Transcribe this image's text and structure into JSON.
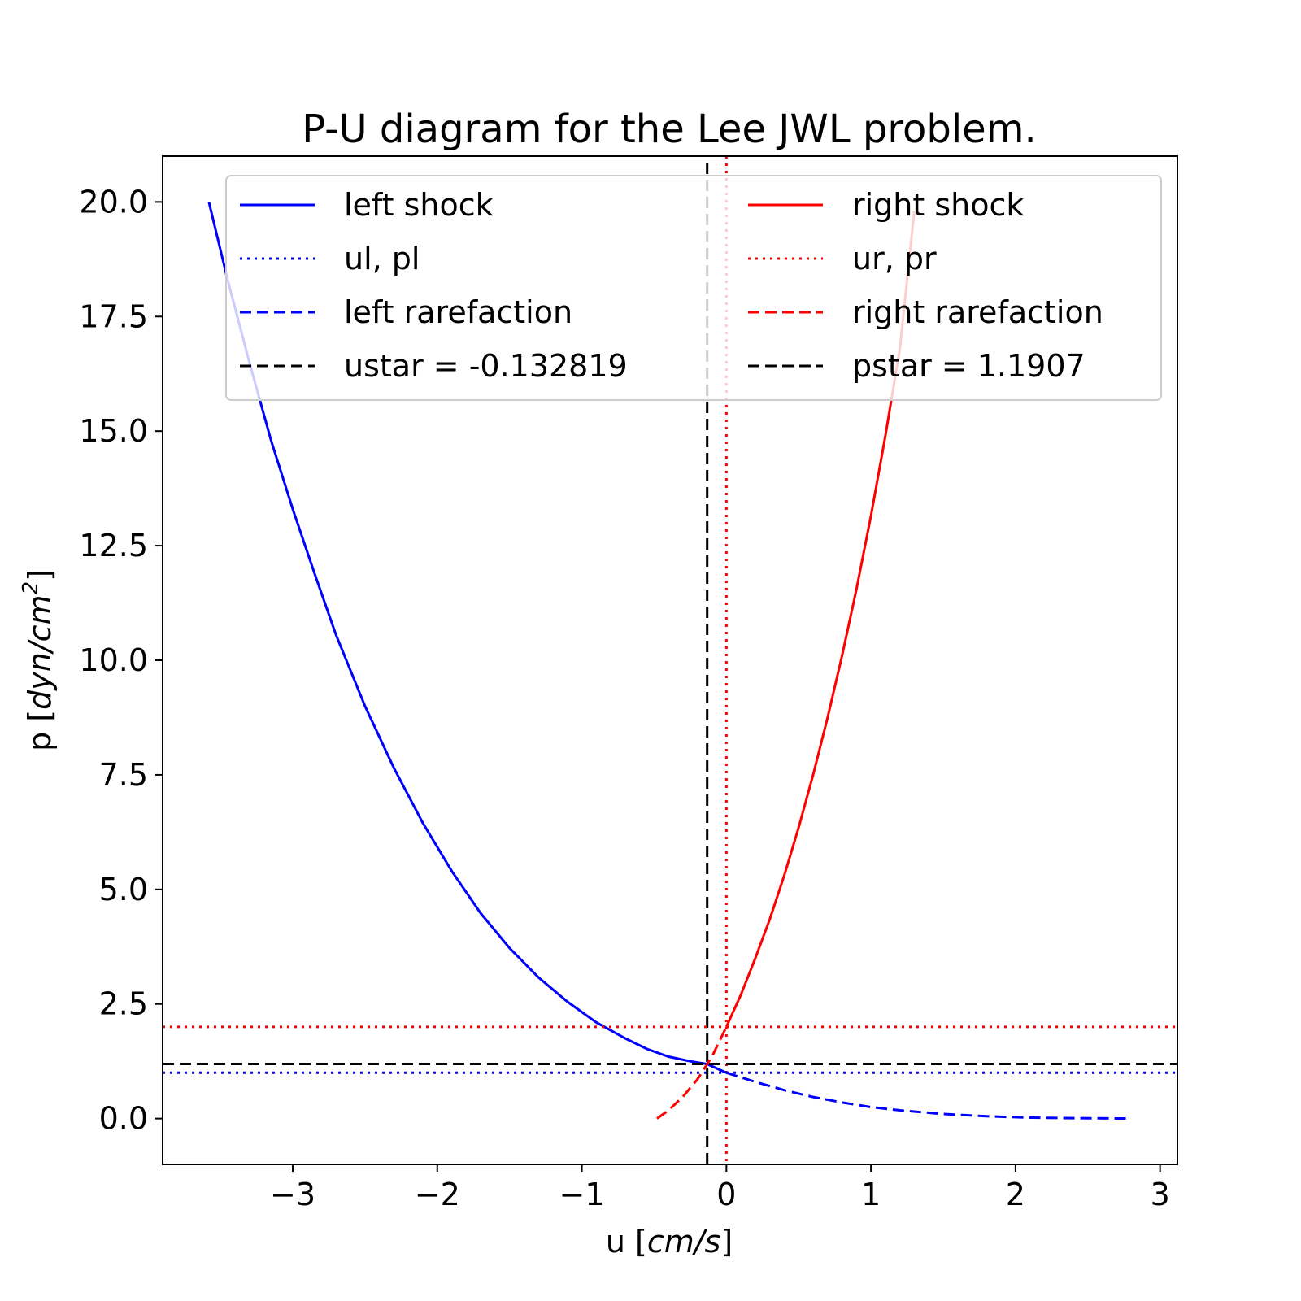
{
  "chart_data": {
    "type": "line",
    "title": "P-U diagram for the Lee JWL problem.",
    "xlabel_prefix": "u [",
    "xlabel_unit": "cm/s",
    "xlabel_suffix": "]",
    "ylabel_prefix": "p [",
    "ylabel_unit": "dyn/cm",
    "ylabel_exp": "2",
    "ylabel_suffix": "]",
    "xlim": [
      -3.9,
      3.12
    ],
    "ylim": [
      -1.0,
      21.0
    ],
    "xticks": [
      -3,
      -2,
      -1,
      0,
      1,
      2,
      3
    ],
    "xtick_labels": [
      "−3",
      "−2",
      "−1",
      "0",
      "1",
      "2",
      "3"
    ],
    "yticks": [
      0,
      2.5,
      5,
      7.5,
      10,
      12.5,
      15,
      17.5,
      20
    ],
    "ytick_labels": [
      "0.0",
      "2.5",
      "5.0",
      "7.5",
      "10.0",
      "12.5",
      "15.0",
      "17.5",
      "20.0"
    ],
    "grid": false,
    "legend_placement": "top",
    "series": [
      {
        "name": "left shock",
        "color": "#0000ff",
        "style": "solid",
        "x": [
          -3.58,
          -3.45,
          -3.3,
          -3.15,
          -3.0,
          -2.85,
          -2.7,
          -2.5,
          -2.3,
          -2.1,
          -1.9,
          -1.7,
          -1.5,
          -1.3,
          -1.1,
          -0.9,
          -0.7,
          -0.55,
          -0.4,
          -0.25,
          -0.133,
          0.0
        ],
        "y": [
          20.0,
          18.3,
          16.5,
          14.8,
          13.3,
          11.9,
          10.55,
          9.0,
          7.65,
          6.45,
          5.4,
          4.48,
          3.72,
          3.08,
          2.55,
          2.1,
          1.75,
          1.52,
          1.35,
          1.25,
          1.19,
          1.0
        ]
      },
      {
        "name": "ul, pl",
        "color": "#0000ff",
        "style": "dotted",
        "x": [
          -3.9,
          3.12
        ],
        "y": [
          1.0,
          1.0
        ]
      },
      {
        "name": "left rarefaction",
        "color": "#0000ff",
        "style": "dashed",
        "x": [
          0.0,
          0.2,
          0.4,
          0.6,
          0.8,
          1.0,
          1.2,
          1.5,
          1.8,
          2.1,
          2.4,
          2.8
        ],
        "y": [
          1.0,
          0.8,
          0.62,
          0.47,
          0.35,
          0.25,
          0.18,
          0.1,
          0.05,
          0.02,
          0.01,
          0.0
        ]
      },
      {
        "name": "ustar = -0.132819",
        "color": "#000000",
        "style": "dashed",
        "x": [
          -0.132819,
          -0.132819
        ],
        "y": [
          -1.0,
          21.0
        ]
      },
      {
        "name": "right shock",
        "color": "#ff0000",
        "style": "solid",
        "x": [
          0.0,
          0.1,
          0.2,
          0.3,
          0.4,
          0.5,
          0.6,
          0.7,
          0.8,
          0.9,
          1.0,
          1.1,
          1.2,
          1.3
        ],
        "y": [
          2.0,
          2.7,
          3.5,
          4.35,
          5.3,
          6.35,
          7.5,
          8.75,
          10.1,
          11.55,
          13.15,
          14.9,
          16.8,
          19.8
        ]
      },
      {
        "name": "ur, pr",
        "color": "#ff0000",
        "style": "dotted",
        "x": [
          -3.9,
          3.12
        ],
        "y": [
          2.0,
          2.0
        ]
      },
      {
        "name": "right rarefaction",
        "color": "#ff0000",
        "style": "dashed",
        "x": [
          -0.48,
          -0.4,
          -0.3,
          -0.2,
          -0.1,
          0.0
        ],
        "y": [
          0.0,
          0.18,
          0.48,
          0.86,
          1.35,
          2.0
        ]
      },
      {
        "name": "pstar = 1.1907",
        "color": "#000000",
        "style": "dashed",
        "x": [
          -3.9,
          3.12
        ],
        "y": [
          1.1907,
          1.1907
        ]
      }
    ],
    "ref_lines": [
      {
        "kind": "vertical",
        "value": 0.0,
        "color": "#ff0000",
        "style": "dotted"
      }
    ]
  }
}
